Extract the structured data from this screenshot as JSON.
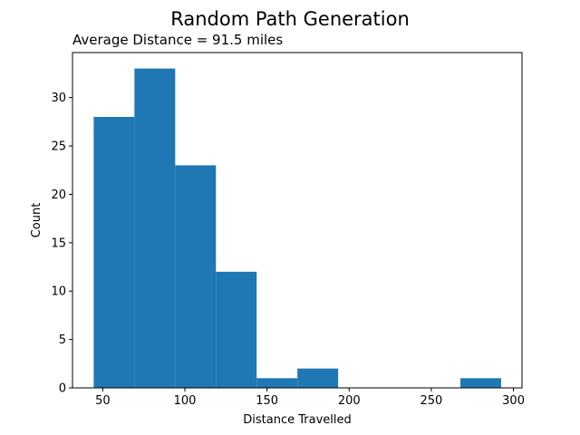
{
  "chart_data": {
    "type": "bar",
    "variant": "histogram",
    "title": "Random Path Generation",
    "subtitle": "Average Distance = 91.5 miles",
    "xlabel": "Distance Travelled",
    "ylabel": "Count",
    "xlim": [
      31.6,
      305.2
    ],
    "ylim": [
      0,
      34.65
    ],
    "xticks": [
      50,
      100,
      150,
      200,
      250,
      300
    ],
    "yticks": [
      0,
      5,
      10,
      15,
      20,
      25,
      30
    ],
    "bin_edges": [
      44.5,
      69.3,
      94.1,
      118.9,
      143.7,
      168.5,
      193.3,
      218.1,
      242.9,
      267.7,
      292.5
    ],
    "values": [
      28,
      33,
      23,
      12,
      1,
      2,
      0,
      0,
      0,
      1
    ],
    "grid": false,
    "bar_color": "#1f77b4"
  }
}
